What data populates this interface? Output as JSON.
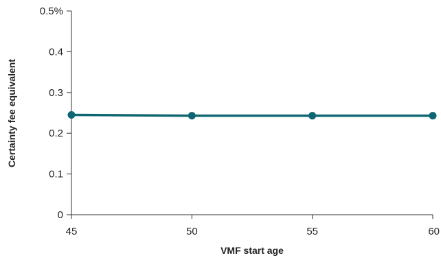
{
  "chart_data": {
    "type": "line",
    "title": "",
    "xlabel": "VMF start age",
    "ylabel": "Certainty fee equivalent",
    "x": [
      45,
      50,
      55,
      60
    ],
    "xlim": [
      45,
      60
    ],
    "ylim": [
      0,
      0.5
    ],
    "x_ticks": [
      "45",
      "50",
      "55",
      "60"
    ],
    "y_ticks": [
      {
        "value": 0,
        "label": "0"
      },
      {
        "value": 0.1,
        "label": "0.1"
      },
      {
        "value": 0.2,
        "label": "0.2"
      },
      {
        "value": 0.3,
        "label": "0.3"
      },
      {
        "value": 0.4,
        "label": "0.4"
      },
      {
        "value": 0.5,
        "label": "0.5%"
      }
    ],
    "grid": false,
    "legend": "none",
    "series": [
      {
        "values": [
          0.245,
          0.243,
          0.243,
          0.243
        ],
        "color": "#0e6672"
      }
    ]
  }
}
